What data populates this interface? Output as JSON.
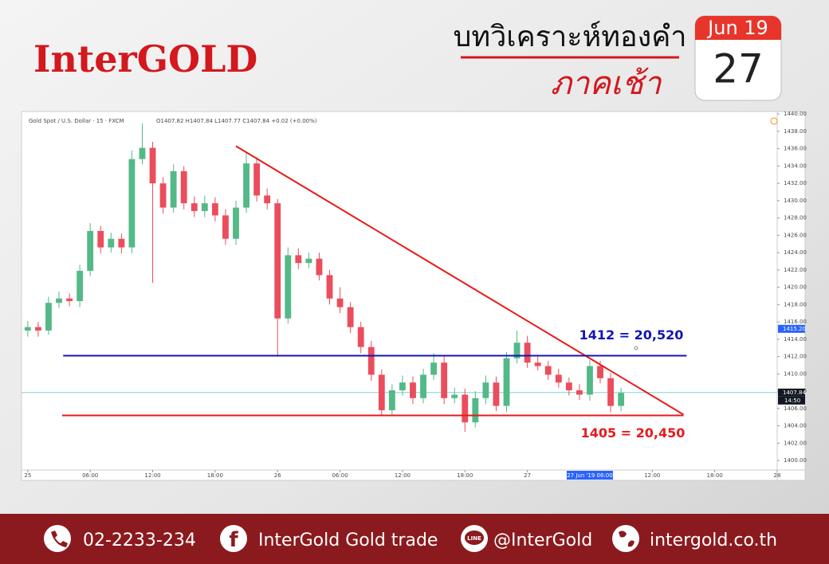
{
  "header": {
    "logo": "InterGOLD",
    "title": "บทวิเคราะห์ทองคำ",
    "subtitle": "ภาคเช้า",
    "calendar": {
      "month": "Jun 19",
      "day": "27"
    }
  },
  "footer": {
    "phone": "02-2233-234",
    "facebook": "InterGold Gold trade",
    "line": "@InterGold",
    "website": "intergold.co.th"
  },
  "chart_data": {
    "type": "candlestick",
    "symbol": "Gold Spot / U.S. Dollar · 15 · FXCM",
    "legend_text": "O1407.82 H1407.84 L1407.77 C1407.84 +0.02 (+0.00%)",
    "up_color": "#53b987",
    "down_color": "#eb4d5c",
    "x": [
      0,
      1,
      2,
      3,
      4,
      5,
      6,
      7,
      8,
      9,
      10,
      11,
      12,
      13,
      14,
      15,
      16,
      17,
      18,
      19,
      20,
      21,
      22,
      23,
      24,
      25,
      26,
      27,
      28,
      29,
      30,
      31,
      32,
      33,
      34,
      35,
      36,
      37,
      38,
      39,
      40,
      41,
      42,
      43,
      44,
      45,
      46,
      47,
      48,
      49,
      50,
      51,
      52,
      53,
      54,
      55,
      56,
      57
    ],
    "open": [
      1415.0,
      1415.4,
      1415.0,
      1418.2,
      1418.7,
      1418.4,
      1421.9,
      1426.5,
      1424.6,
      1425.6,
      1424.6,
      1434.8,
      1436.1,
      1432.0,
      1429.2,
      1433.4,
      1429.7,
      1428.8,
      1429.7,
      1428.3,
      1425.6,
      1429.2,
      1434.3,
      1430.6,
      1429.7,
      1416.4,
      1423.7,
      1422.8,
      1423.3,
      1421.4,
      1418.7,
      1417.7,
      1415.4,
      1413.1,
      1409.9,
      1405.8,
      1408.1,
      1409.0,
      1407.2,
      1409.9,
      1411.3,
      1407.2,
      1407.6,
      1404.4,
      1407.2,
      1409.0,
      1406.3,
      1411.8,
      1413.6,
      1411.3,
      1410.9,
      1409.9,
      1409.0,
      1408.1,
      1407.6,
      1410.9,
      1409.5,
      1406.3
    ],
    "high": [
      1416.1,
      1416.0,
      1418.9,
      1419.5,
      1419.3,
      1422.6,
      1427.4,
      1427.1,
      1426.3,
      1426.2,
      1435.8,
      1438.9,
      1436.8,
      1432.7,
      1434.2,
      1434.0,
      1430.5,
      1430.6,
      1430.4,
      1429.0,
      1430.0,
      1435.6,
      1435.0,
      1431.4,
      1430.2,
      1424.6,
      1424.5,
      1424.0,
      1424.0,
      1422.0,
      1420.0,
      1418.3,
      1416.0,
      1413.8,
      1410.5,
      1408.8,
      1409.8,
      1409.7,
      1410.6,
      1412.4,
      1412.0,
      1408.4,
      1408.3,
      1408.0,
      1409.8,
      1409.7,
      1412.5,
      1415.0,
      1414.4,
      1412.0,
      1411.5,
      1410.6,
      1409.6,
      1408.8,
      1411.6,
      1411.5,
      1410.1,
      1408.4
    ],
    "low": [
      1414.3,
      1414.3,
      1414.5,
      1417.6,
      1417.8,
      1417.7,
      1421.3,
      1423.9,
      1424.0,
      1423.9,
      1423.9,
      1434.2,
      1420.5,
      1428.5,
      1428.6,
      1429.0,
      1428.1,
      1428.1,
      1427.6,
      1424.9,
      1424.9,
      1428.6,
      1429.9,
      1429.0,
      1412.0,
      1415.8,
      1422.1,
      1422.2,
      1420.8,
      1418.0,
      1417.0,
      1414.7,
      1412.4,
      1409.2,
      1405.1,
      1405.2,
      1407.5,
      1406.5,
      1406.6,
      1409.3,
      1406.5,
      1406.6,
      1403.3,
      1403.8,
      1406.5,
      1405.7,
      1405.6,
      1411.2,
      1410.7,
      1410.4,
      1409.3,
      1408.4,
      1407.5,
      1407.0,
      1406.9,
      1408.9,
      1405.6,
      1405.7
    ],
    "close": [
      1415.4,
      1415.0,
      1418.2,
      1418.7,
      1418.4,
      1421.9,
      1426.5,
      1424.6,
      1425.6,
      1424.6,
      1434.8,
      1436.1,
      1432.0,
      1429.2,
      1433.4,
      1429.7,
      1428.8,
      1429.7,
      1428.3,
      1425.6,
      1429.2,
      1434.3,
      1430.6,
      1429.7,
      1416.4,
      1423.7,
      1422.8,
      1423.3,
      1421.4,
      1418.7,
      1417.7,
      1415.4,
      1413.1,
      1409.9,
      1405.8,
      1408.1,
      1409.0,
      1407.2,
      1409.9,
      1411.3,
      1407.2,
      1407.6,
      1404.4,
      1407.2,
      1409.0,
      1406.3,
      1411.8,
      1413.6,
      1411.3,
      1410.9,
      1409.9,
      1409.0,
      1408.1,
      1407.6,
      1410.9,
      1409.5,
      1406.3,
      1407.8
    ],
    "xlim": [
      -0.6,
      72
    ],
    "ylim": [
      1398.9,
      1440.2
    ],
    "xticks": [
      {
        "value": 0,
        "label": "25"
      },
      {
        "value": 6,
        "label": "06:00"
      },
      {
        "value": 12,
        "label": "12:00"
      },
      {
        "value": 18,
        "label": "18:00"
      },
      {
        "value": 24,
        "label": "26"
      },
      {
        "value": 30,
        "label": "06:00"
      },
      {
        "value": 36,
        "label": "12:00"
      },
      {
        "value": 42,
        "label": "18:00"
      },
      {
        "value": 48,
        "label": "27"
      },
      {
        "value": 60,
        "label": "12:00"
      },
      {
        "value": 66,
        "label": "18:00"
      },
      {
        "value": 72,
        "label": "28"
      }
    ],
    "yticks": [
      {
        "value": 1400,
        "label": "1400.00"
      },
      {
        "value": 1402,
        "label": "1402.00"
      },
      {
        "value": 1404,
        "label": "1404.00"
      },
      {
        "value": 1406,
        "label": "1406.00"
      },
      {
        "value": 1408,
        "label": "1408.00"
      },
      {
        "value": 1410,
        "label": "1410.00"
      },
      {
        "value": 1412,
        "label": "1412.00"
      },
      {
        "value": 1414,
        "label": "1414.00"
      },
      {
        "value": 1416,
        "label": "1416.00"
      },
      {
        "value": 1418,
        "label": "1418.00"
      },
      {
        "value": 1420,
        "label": "1420.00"
      },
      {
        "value": 1422,
        "label": "1422.00"
      },
      {
        "value": 1424,
        "label": "1424.00"
      },
      {
        "value": 1426,
        "label": "1426.00"
      },
      {
        "value": 1428,
        "label": "1428.00"
      },
      {
        "value": 1430,
        "label": "1430.00"
      },
      {
        "value": 1432,
        "label": "1432.00"
      },
      {
        "value": 1434,
        "label": "1434.00"
      },
      {
        "value": 1436,
        "label": "1436.00"
      },
      {
        "value": 1438,
        "label": "1438.00"
      },
      {
        "value": 1440,
        "label": "1440.00"
      }
    ],
    "grid": false,
    "cursor_time": {
      "value": 54,
      "label": "27 Jun '19  06:00"
    },
    "price_tags": [
      {
        "value": 1415.2,
        "label": "1415.20",
        "color": "#2962ff"
      },
      {
        "value": 1407.84,
        "label": "1407.84",
        "color": "#131722"
      }
    ],
    "countdown": "14:50",
    "current_line_color": "#7fd6d6",
    "lines": [
      {
        "color": "#e8191b",
        "x": [
          20.0,
          63.0
        ],
        "values": [
          1436.3,
          1405.3
        ]
      },
      {
        "color": "#1414b4",
        "x": [
          3.4,
          63.3
        ],
        "values": [
          1412.1,
          1412.1
        ]
      },
      {
        "color": "#e8191b",
        "x": [
          3.3,
          63.0
        ],
        "values": [
          1405.2,
          1405.2
        ]
      }
    ],
    "annotations": [
      {
        "text": "1412 = 20,520",
        "color": "#1414b4"
      },
      {
        "text": "1405 = 20,450",
        "color": "#e8191b"
      }
    ]
  }
}
